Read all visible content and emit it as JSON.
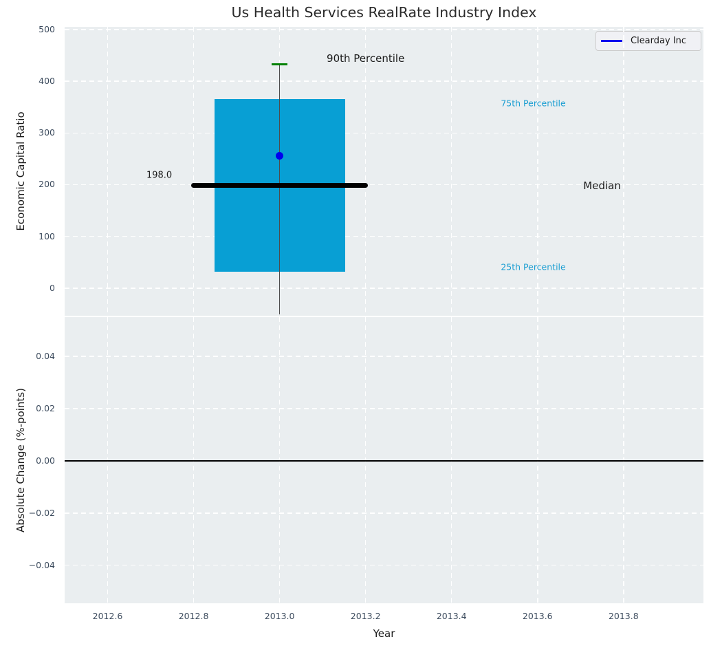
{
  "title": "Us Health Services RealRate Industry Index",
  "legend": {
    "label": "Clearday Inc"
  },
  "colors": {
    "box_fill": "#089fd4",
    "percentile_cap": "#008000",
    "whisker": "#4d4d4d",
    "median_line": "#000000",
    "series_point": "#0000ee",
    "percentile_label": "#1b9ed2",
    "annotation_text": "#1a1a1a",
    "tick_label": "#3d4c5e",
    "panel_bg": "#eaeef0",
    "grid": "#ffffff",
    "zero_line": "#000000",
    "legend_line": "#0000ee"
  },
  "chart_data": [
    {
      "type": "boxplot",
      "title": "Us Health Services RealRate Industry Index",
      "ylabel": "Economic Capital Ratio",
      "ylim": [
        -54.2,
        505.3
      ],
      "ytick_values": [
        0,
        100,
        200,
        300,
        400,
        500
      ],
      "ytick_labels": [
        "0",
        "100",
        "200",
        "300",
        "400",
        "500"
      ],
      "xlim": [
        2012.5,
        2013.985
      ],
      "grid": "white dashed, on",
      "legend_position": "upper right",
      "box": {
        "x_center": 2013.0,
        "x_left": 2012.848,
        "x_right": 2013.152,
        "p25": 32,
        "median": 198,
        "p75": 366,
        "p90": 433,
        "whisker_low_clipped": -51,
        "median_line_x": [
          2012.795,
          2013.205
        ],
        "cap_x": [
          2012.982,
          2013.018
        ]
      },
      "series_point": {
        "name": "Clearday Inc",
        "x": 2013.0,
        "y": 256
      },
      "annotations": [
        {
          "text": "90th Percentile",
          "x": 2013.2,
          "y": 444,
          "color": "#1a1a1a",
          "kind": "major"
        },
        {
          "text": "75th Percentile",
          "x": 2013.59,
          "y": 358,
          "color": "#1b9ed2",
          "kind": "minor"
        },
        {
          "text": "Median",
          "x": 2013.75,
          "y": 198,
          "color": "#1a1a1a",
          "kind": "major"
        },
        {
          "text": "25th Percentile",
          "x": 2013.59,
          "y": 41,
          "color": "#1b9ed2",
          "kind": "minor"
        },
        {
          "text": "198.0",
          "x": 2012.72,
          "y": 218,
          "color": "#1a1a1a",
          "kind": "value"
        }
      ]
    },
    {
      "type": "line",
      "ylabel": "Absolute Change (%-points)",
      "xlabel": "Year",
      "ylim": [
        -0.0547,
        0.055
      ],
      "ytick_values": [
        0.04,
        0.02,
        0.0,
        -0.02,
        -0.04
      ],
      "ytick_labels": [
        "0.04",
        "0.02",
        "0.00",
        "−0.02",
        "−0.04"
      ],
      "xlim": [
        2012.5,
        2013.985
      ],
      "xtick_values": [
        2012.6,
        2012.8,
        2013.0,
        2013.2,
        2013.4,
        2013.6,
        2013.8
      ],
      "xtick_labels": [
        "2012.6",
        "2012.8",
        "2013.0",
        "2013.2",
        "2013.4",
        "2013.6",
        "2013.8"
      ],
      "zero_line_y": 0.0,
      "series": []
    }
  ]
}
